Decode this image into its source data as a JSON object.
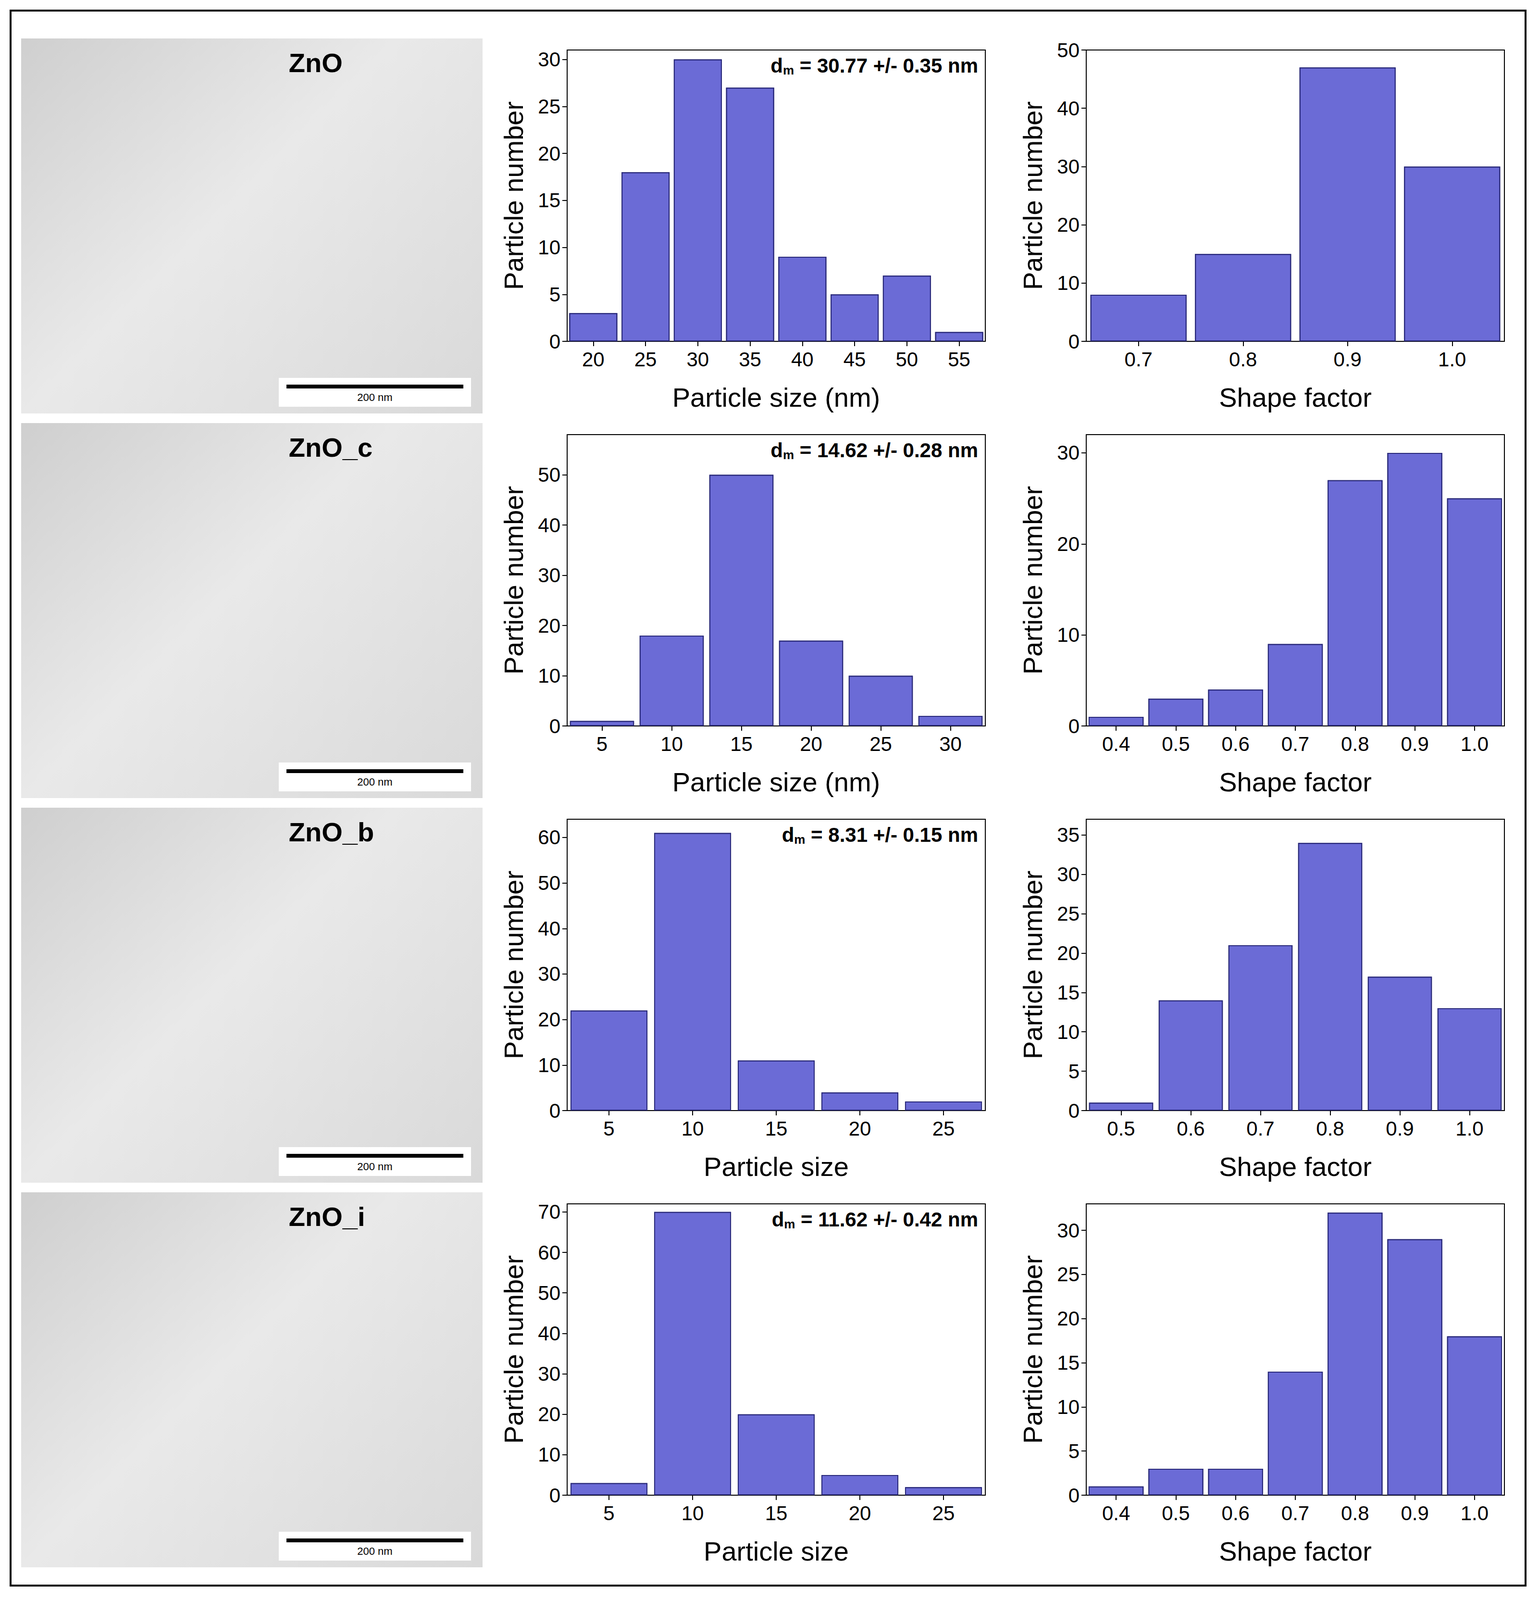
{
  "images": [
    {
      "label": "ZnO",
      "scale_bar": "200 nm"
    },
    {
      "label": "ZnO_c",
      "scale_bar": "200 nm"
    },
    {
      "label": "ZnO_b",
      "scale_bar": "200 nm"
    },
    {
      "label": "ZnO_i",
      "scale_bar": "200 nm"
    }
  ],
  "chart_data": [
    {
      "type": "bar",
      "xlabel": "Particle size (nm)",
      "ylabel": "Particle number",
      "categories": [
        "20",
        "25",
        "30",
        "35",
        "40",
        "45",
        "50",
        "55"
      ],
      "values": [
        3,
        18,
        30,
        27,
        9,
        5,
        7,
        1
      ],
      "color": "#6b6bd6",
      "ylim": [
        0,
        31
      ],
      "yticks": [
        0,
        5,
        10,
        15,
        20,
        25,
        30
      ],
      "annotation": {
        "text": "d",
        "subscript": "m",
        "rest": " = 30.77 +/- 0.35 nm"
      }
    },
    {
      "type": "bar",
      "xlabel": "Shape factor",
      "ylabel": "Particle number",
      "categories": [
        "0.7",
        "0.8",
        "0.9",
        "1.0"
      ],
      "values": [
        8,
        15,
        47,
        30
      ],
      "color": "#6b6bd6",
      "ylim": [
        0,
        50
      ],
      "yticks": [
        0,
        10,
        20,
        30,
        40,
        50
      ]
    },
    {
      "type": "bar",
      "xlabel": "Particle size (nm)",
      "ylabel": "Particle number",
      "categories": [
        "5",
        "10",
        "15",
        "20",
        "25",
        "30"
      ],
      "values": [
        1,
        18,
        50,
        17,
        10,
        2
      ],
      "color": "#6b6bd6",
      "ylim": [
        0,
        58
      ],
      "yticks": [
        0,
        10,
        20,
        30,
        40,
        50
      ],
      "annotation": {
        "text": "d",
        "subscript": "m",
        "rest": " = 14.62 +/- 0.28 nm"
      }
    },
    {
      "type": "bar",
      "xlabel": "Shape factor",
      "ylabel": "Particle number",
      "categories": [
        "0.4",
        "0.5",
        "0.6",
        "0.7",
        "0.8",
        "0.9",
        "1.0"
      ],
      "values": [
        1,
        3,
        4,
        9,
        27,
        30,
        25
      ],
      "color": "#6b6bd6",
      "ylim": [
        0,
        32
      ],
      "yticks": [
        0,
        10,
        20,
        30
      ]
    },
    {
      "type": "bar",
      "xlabel": "Particle size",
      "ylabel": "Particle number",
      "categories": [
        "5",
        "10",
        "15",
        "20",
        "25"
      ],
      "values": [
        22,
        61,
        11,
        4,
        2
      ],
      "color": "#6b6bd6",
      "ylim": [
        0,
        64
      ],
      "yticks": [
        0,
        10,
        20,
        30,
        40,
        50,
        60
      ],
      "annotation": {
        "text": "d",
        "subscript": "m",
        "rest": " = 8.31 +/- 0.15 nm"
      }
    },
    {
      "type": "bar",
      "xlabel": "Shape factor",
      "ylabel": "Particle number",
      "categories": [
        "0.5",
        "0.6",
        "0.7",
        "0.8",
        "0.9",
        "1.0"
      ],
      "values": [
        1,
        14,
        21,
        34,
        17,
        13
      ],
      "color": "#6b6bd6",
      "ylim": [
        0,
        37
      ],
      "yticks": [
        0,
        5,
        10,
        15,
        20,
        25,
        30,
        35
      ]
    },
    {
      "type": "bar",
      "xlabel": "Particle size",
      "ylabel": "Particle number",
      "categories": [
        "5",
        "10",
        "15",
        "20",
        "25"
      ],
      "values": [
        3,
        70,
        20,
        5,
        2
      ],
      "color": "#6b6bd6",
      "ylim": [
        0,
        72
      ],
      "yticks": [
        0,
        10,
        20,
        30,
        40,
        50,
        60,
        70
      ],
      "annotation": {
        "text": "d",
        "subscript": "m",
        "rest": " = 11.62 +/- 0.42 nm"
      }
    },
    {
      "type": "bar",
      "xlabel": "Shape factor",
      "ylabel": "Particle number",
      "categories": [
        "0.4",
        "0.5",
        "0.6",
        "0.7",
        "0.8",
        "0.9",
        "1.0"
      ],
      "values": [
        1,
        3,
        3,
        14,
        32,
        29,
        18
      ],
      "color": "#6b6bd6",
      "ylim": [
        0,
        33
      ],
      "yticks": [
        0,
        5,
        10,
        15,
        20,
        25,
        30
      ]
    }
  ]
}
